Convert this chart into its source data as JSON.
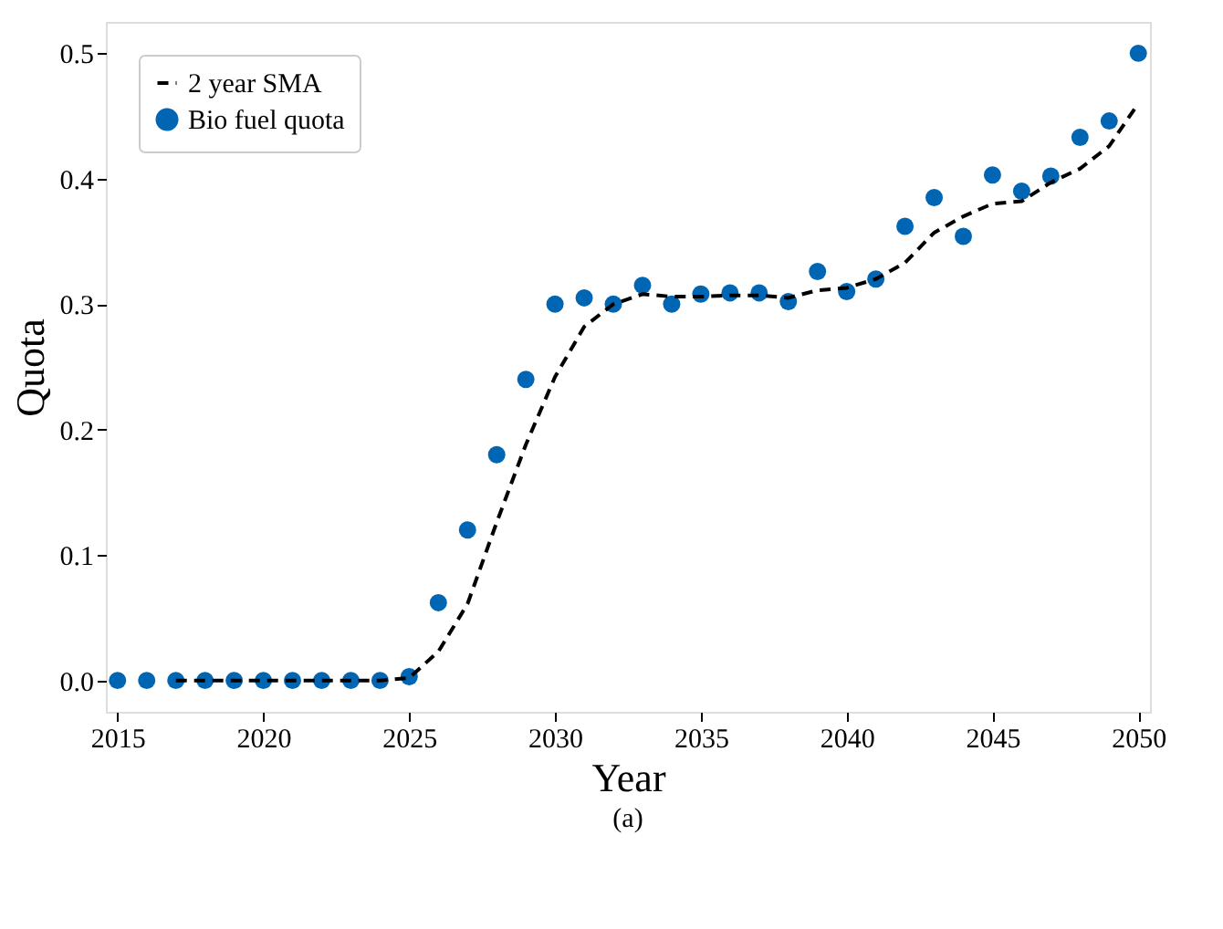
{
  "chart_data": {
    "type": "scatter",
    "xlabel": "Year",
    "ylabel": "Quota",
    "annotations": [
      "(a)"
    ],
    "xlim": [
      2014.6,
      2050.4
    ],
    "xticks": [
      2015,
      2020,
      2025,
      2030,
      2035,
      2040,
      2045,
      2050
    ],
    "ylim": [
      -0.025,
      0.525
    ],
    "yticks": [
      {
        "value": 0,
        "label": "0.0"
      },
      0.1,
      0.2,
      0.3,
      0.4,
      0.5
    ],
    "grid": false,
    "legend": "top left",
    "series": [
      {
        "name": "2 year SMA",
        "type": "line",
        "line_style": "dashed",
        "marker": "none",
        "color": "#000000",
        "x": [
          2017,
          2018,
          2019,
          2020,
          2021,
          2022,
          2023,
          2024,
          2025,
          2026,
          2027,
          2028,
          2029,
          2030,
          2031,
          2032,
          2033,
          2034,
          2035,
          2036,
          2037,
          2038,
          2039,
          2040,
          2041,
          2042,
          2043,
          2044,
          2045,
          2046,
          2047,
          2048,
          2049,
          2050
        ],
        "values": [
          0,
          0,
          0,
          0,
          0,
          0,
          0,
          0,
          0.002,
          0.023,
          0.061,
          0.126,
          0.188,
          0.242,
          0.282,
          0.3,
          0.308,
          0.306,
          0.306,
          0.307,
          0.307,
          0.305,
          0.311,
          0.313,
          0.32,
          0.333,
          0.357,
          0.37,
          0.38,
          0.382,
          0.397,
          0.408,
          0.426,
          0.46
        ]
      },
      {
        "name": "Bio fuel quota",
        "marker": "circle",
        "color": "#0066b3",
        "x": [
          2015,
          2016,
          2017,
          2018,
          2019,
          2020,
          2021,
          2022,
          2023,
          2024,
          2025,
          2026,
          2027,
          2028,
          2029,
          2030,
          2031,
          2032,
          2033,
          2034,
          2035,
          2036,
          2037,
          2038,
          2039,
          2040,
          2041,
          2042,
          2043,
          2044,
          2045,
          2046,
          2047,
          2048,
          2049,
          2050
        ],
        "values": [
          0,
          0,
          0,
          0,
          0,
          0,
          0,
          0,
          0,
          0,
          0.003,
          0.062,
          0.12,
          0.18,
          0.24,
          0.3,
          0.305,
          0.3,
          0.315,
          0.3,
          0.308,
          0.309,
          0.309,
          0.302,
          0.326,
          0.31,
          0.32,
          0.362,
          0.385,
          0.354,
          0.403,
          0.39,
          0.402,
          0.433,
          0.446,
          0.5
        ]
      }
    ]
  }
}
